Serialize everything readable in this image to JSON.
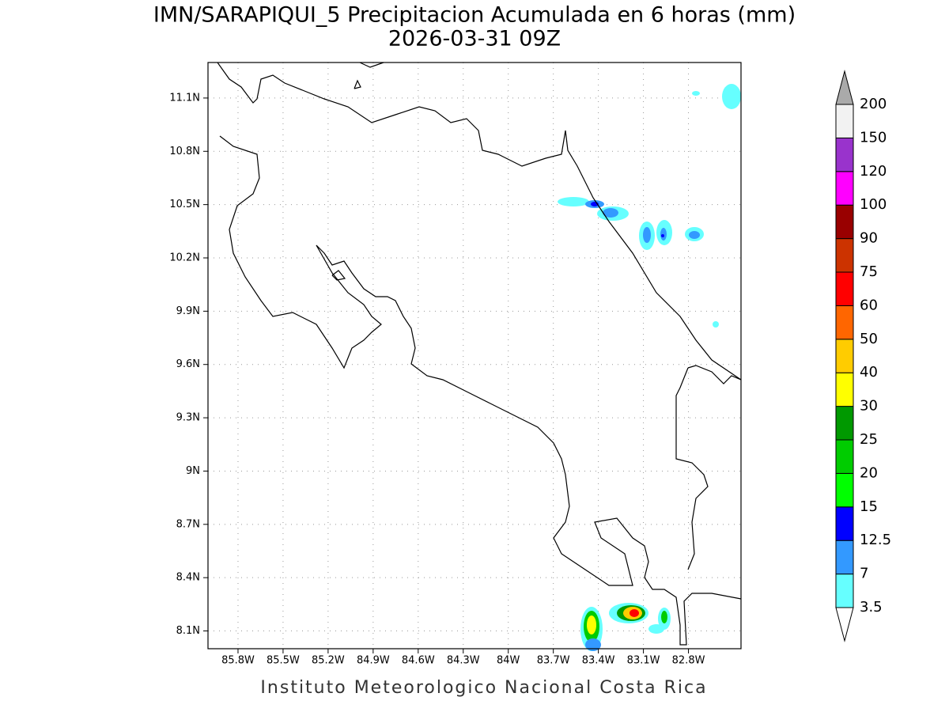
{
  "title": [
    "IMN/SARAPIQUI_5 Precipitacion Acumulada en 6 horas (mm)",
    "2026-03-31 09Z"
  ],
  "map": {
    "xlim": [
      -86,
      -82.45
    ],
    "ylim": [
      8,
      11.3
    ],
    "xticks": [
      {
        "value": -85.8,
        "label": "85.8W"
      },
      {
        "value": -85.5,
        "label": "85.5W"
      },
      {
        "value": -85.2,
        "label": "85.2W"
      },
      {
        "value": -84.9,
        "label": "84.9W"
      },
      {
        "value": -84.6,
        "label": "84.6W"
      },
      {
        "value": -84.3,
        "label": "84.3W"
      },
      {
        "value": -84,
        "label": "84W"
      },
      {
        "value": -83.7,
        "label": "83.7W"
      },
      {
        "value": -83.4,
        "label": "83.4W"
      },
      {
        "value": -83.1,
        "label": "83.1W"
      },
      {
        "value": -82.8,
        "label": "82.8W"
      }
    ],
    "yticks": [
      {
        "value": 8.1,
        "label": "8.1N"
      },
      {
        "value": 8.4,
        "label": "8.4N"
      },
      {
        "value": 8.7,
        "label": "8.7N"
      },
      {
        "value": 9,
        "label": "9N"
      },
      {
        "value": 9.3,
        "label": "9.3N"
      },
      {
        "value": 9.6,
        "label": "9.6N"
      },
      {
        "value": 9.9,
        "label": "9.9N"
      },
      {
        "value": 10.2,
        "label": "10.2N"
      },
      {
        "value": 10.5,
        "label": "10.5N"
      },
      {
        "value": 10.8,
        "label": "10.8N"
      },
      {
        "value": 11.1,
        "label": "11.1N"
      }
    ],
    "grid": true
  },
  "colorbar": {
    "levels": [
      3.5,
      7,
      12.5,
      15,
      20,
      25,
      30,
      40,
      50,
      60,
      75,
      90,
      100,
      120,
      150,
      200
    ],
    "colors": [
      "#ffffff",
      "#66ffff",
      "#3399ff",
      "#0000ff",
      "#00ff00",
      "#00cc00",
      "#009900",
      "#ffff00",
      "#ffcc00",
      "#ff6600",
      "#ff0000",
      "#cc3300",
      "#990000",
      "#ff00ff",
      "#9933cc",
      "#f2f2f2",
      "#aaaaaa"
    ]
  },
  "footer": "Instituto Meteorologico Nacional Costa Rica"
}
